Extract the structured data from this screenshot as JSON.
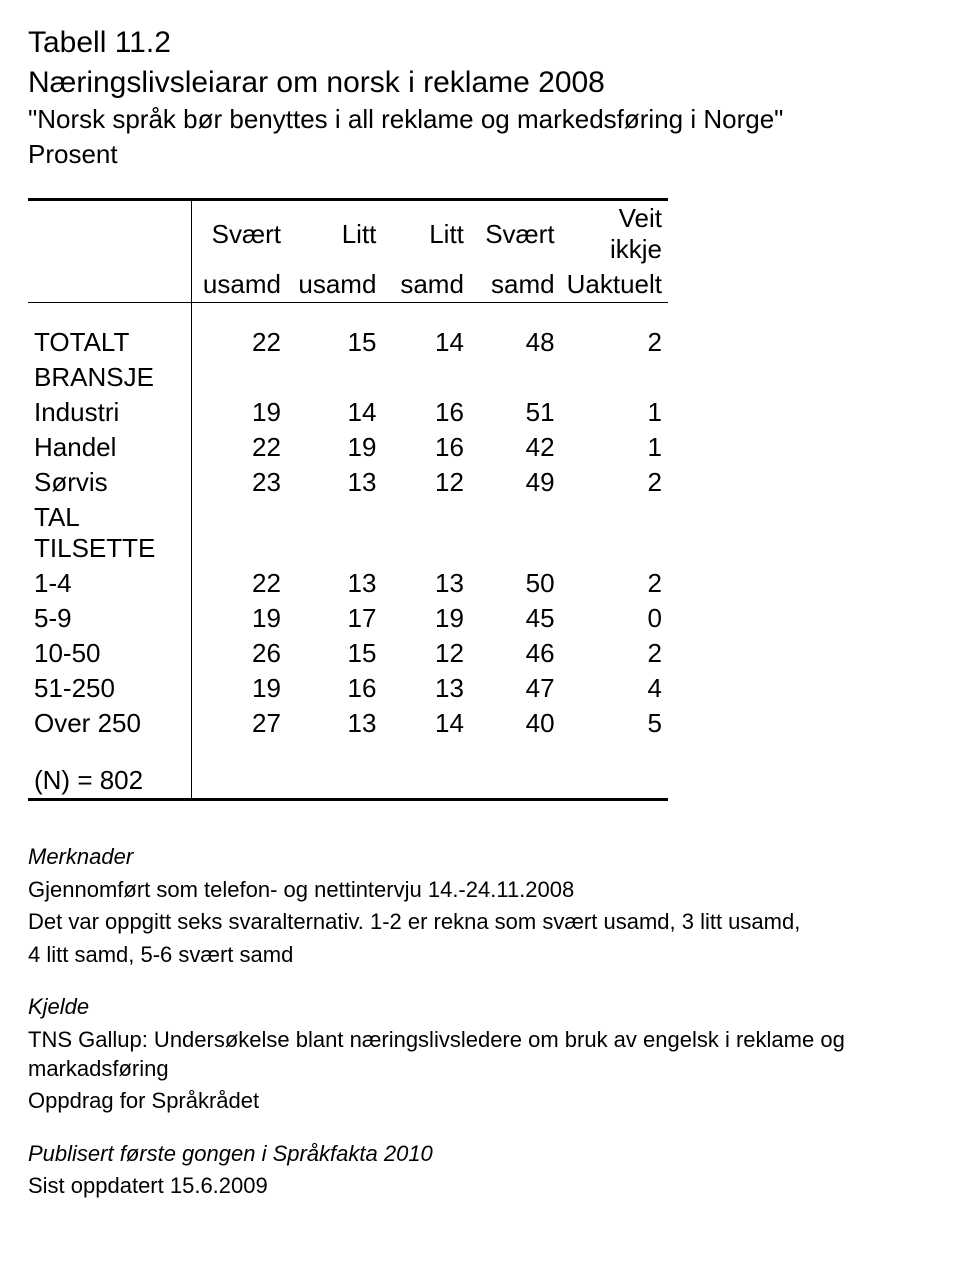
{
  "header": {
    "table_no": "Tabell 11.2",
    "title": "Næringslivsleiarar om norsk i reklame 2008",
    "quote": "\"Norsk språk bør benyttes i all reklame og markedsføring i Norge\"",
    "unit": "Prosent"
  },
  "columns": [
    {
      "l1": "Svært",
      "l2": "usamd"
    },
    {
      "l1": "Litt",
      "l2": "usamd"
    },
    {
      "l1": "Litt",
      "l2": "samd"
    },
    {
      "l1": "Svært",
      "l2": "samd"
    },
    {
      "l1": "Veit ikkje",
      "l2": "Uaktuelt"
    }
  ],
  "total": {
    "label": "TOTALT",
    "values": [
      "22",
      "15",
      "14",
      "48",
      "2"
    ]
  },
  "sections": [
    {
      "heading": "BRANSJE",
      "rows": [
        {
          "label": "Industri",
          "values": [
            "19",
            "14",
            "16",
            "51",
            "1"
          ]
        },
        {
          "label": "Handel",
          "values": [
            "22",
            "19",
            "16",
            "42",
            "1"
          ]
        },
        {
          "label": "Sørvis",
          "values": [
            "23",
            "13",
            "12",
            "49",
            "2"
          ]
        }
      ]
    },
    {
      "heading": "TAL TILSETTE",
      "rows": [
        {
          "label": "1-4",
          "values": [
            "22",
            "13",
            "13",
            "50",
            "2"
          ]
        },
        {
          "label": "5-9",
          "values": [
            "19",
            "17",
            "19",
            "45",
            "0"
          ]
        },
        {
          "label": "10-50",
          "values": [
            "26",
            "15",
            "12",
            "46",
            "2"
          ]
        },
        {
          "label": "51-250",
          "values": [
            "19",
            "16",
            "13",
            "47",
            "4"
          ]
        },
        {
          "label": "Over 250",
          "values": [
            "27",
            "13",
            "14",
            "40",
            "5"
          ]
        }
      ]
    }
  ],
  "n_label": "(N) = 802",
  "notes": {
    "merk_hd": "Merknader",
    "merk_l1": "Gjennomført som telefon- og nettintervju 14.-24.11.2008",
    "merk_l2": "Det var oppgitt seks svaralternativ. 1-2 er rekna som svært usamd, 3 litt usamd,",
    "merk_l3": "4 litt samd, 5-6 svært samd",
    "kjelde_hd": "Kjelde",
    "kjelde_l1": "TNS Gallup: Undersøkelse blant næringslivsledere om bruk av engelsk i reklame og markadsføring",
    "kjelde_l2": "Oppdrag for Språkrådet",
    "pub": "Publisert første gongen i Språkfakta 2010",
    "updated": "Sist oppdatert 15.6.2009"
  }
}
